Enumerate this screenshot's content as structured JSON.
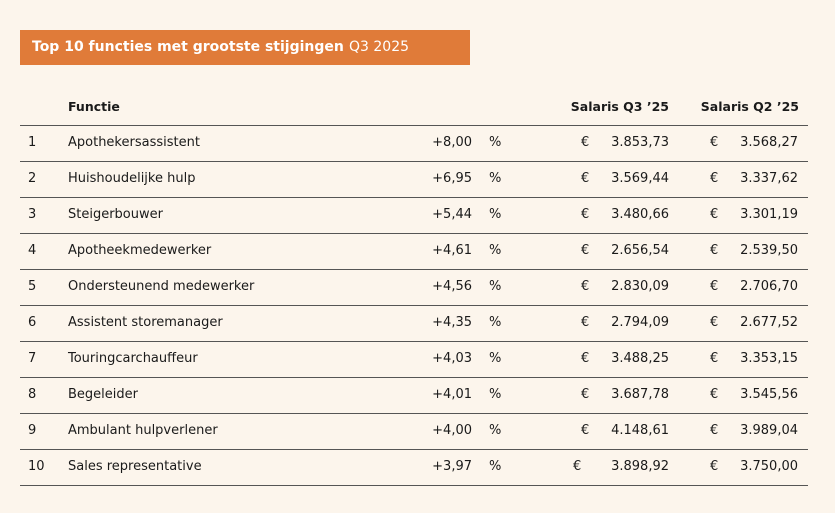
{
  "header": {
    "title": "Top 10 functies met grootste stijgingen",
    "subtitle": "Q3 2025"
  },
  "table": {
    "columns": [
      "Functie",
      "Salaris Q3 ’25",
      "Salaris Q2 ’25"
    ],
    "rows": [
      [
        "1",
        "Apothekersassistent",
        "+8,00",
        "%",
        "€",
        "3.853,73",
        "€",
        "3.568,27"
      ],
      [
        "2",
        "Huishoudelijke hulp",
        "+6,95",
        "%",
        "€",
        "3.569,44",
        "€",
        "3.337,62"
      ],
      [
        "3",
        "Steigerbouwer",
        "+5,44",
        "%",
        "€",
        "3.480,66",
        "€",
        "3.301,19"
      ],
      [
        "4",
        "Apotheekmedewerker",
        "+4,61",
        "%",
        "€",
        "2.656,54",
        "€",
        "2.539,50"
      ],
      [
        "5",
        "Ondersteunend medewerker",
        "+4,56",
        "%",
        "€",
        "2.830,09",
        "€",
        "2.706,70"
      ],
      [
        "6",
        "Assistent storemanager",
        "+4,35",
        "%",
        "€",
        "2.794,09",
        "€",
        "2.677,52"
      ],
      [
        "7",
        "Touringcarchauffeur",
        "+4,03",
        "%",
        "€",
        "3.488,25",
        "€",
        "3.353,15"
      ],
      [
        "8",
        "Begeleider",
        "+4,01",
        "%",
        "€",
        "3.687,78",
        "€",
        "3.545,56"
      ],
      [
        "9",
        "Ambulant hulpverlener",
        "+4,00",
        "%",
        "€",
        "4.148,61",
        "€",
        "3.989,04"
      ],
      [
        "10",
        "Sales representative",
        "+3,97",
        "%",
        "€",
        "3.898,92",
        "€",
        "3.750,00"
      ]
    ]
  }
}
